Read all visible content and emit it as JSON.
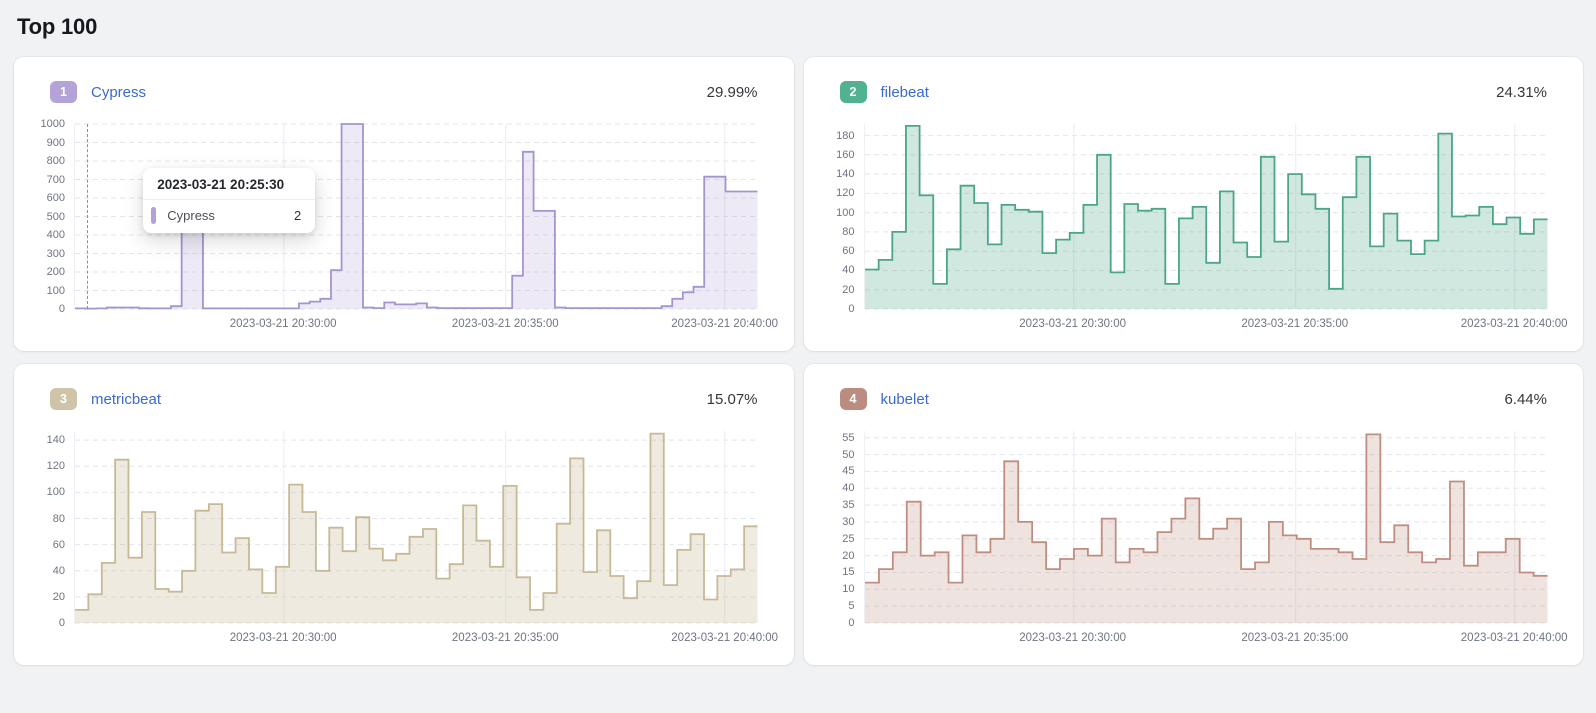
{
  "page": {
    "title": "Top 100"
  },
  "x_axis": {
    "labels": [
      "2023-03-21 20:30:00",
      "2023-03-21 20:35:00",
      "2023-03-21 20:40:00"
    ],
    "fractions": [
      0.306,
      0.631,
      0.952
    ]
  },
  "chart_data": [
    {
      "type": "step-area",
      "rank": "1",
      "name": "Cypress",
      "percent": "29.99%",
      "badge_color": "#b4a3d8",
      "line_color": "#a494cf",
      "fill_opacity": 0.2,
      "ylabel": "",
      "y_ticks": [
        0,
        100,
        200,
        300,
        400,
        500,
        600,
        700,
        800,
        900,
        1000
      ],
      "y_render_max": 1000,
      "x_tick_labels": [
        "2023-03-21 20:30:00",
        "2023-03-21 20:35:00",
        "2023-03-21 20:40:00"
      ],
      "values": [
        3,
        2,
        3,
        8,
        8,
        8,
        4,
        3,
        3,
        15,
        470,
        500,
        3,
        3,
        3,
        3,
        3,
        3,
        3,
        3,
        3,
        30,
        40,
        55,
        210,
        1000,
        1000,
        8,
        5,
        35,
        25,
        25,
        30,
        8,
        5,
        5,
        5,
        5,
        5,
        5,
        5,
        180,
        850,
        530,
        530,
        8,
        5,
        5,
        5,
        5,
        5,
        5,
        5,
        5,
        5,
        15,
        55,
        90,
        120,
        715,
        715,
        635,
        635,
        635
      ],
      "tooltip": {
        "title": "2023-03-21 20:25:30",
        "series": "Cypress",
        "value": "2",
        "cursor_frac": 0.018
      }
    },
    {
      "type": "step-area",
      "rank": "2",
      "name": "filebeat",
      "percent": "24.31%",
      "badge_color": "#51b190",
      "line_color": "#4aa687",
      "fill_opacity": 0.26,
      "ylabel": "",
      "y_ticks": [
        0,
        20,
        40,
        60,
        80,
        100,
        120,
        140,
        160,
        180
      ],
      "y_render_max": 192,
      "x_tick_labels": [
        "2023-03-21 20:30:00",
        "2023-03-21 20:35:00",
        "2023-03-21 20:40:00"
      ],
      "values": [
        41,
        51,
        80,
        190,
        118,
        26,
        62,
        128,
        110,
        67,
        108,
        103,
        101,
        58,
        72,
        79,
        108,
        160,
        38,
        109,
        102,
        104,
        26,
        94,
        106,
        48,
        122,
        69,
        54,
        158,
        70,
        140,
        119,
        104,
        21,
        116,
        158,
        65,
        99,
        71,
        57,
        71,
        182,
        96,
        97,
        106,
        88,
        95,
        78,
        93
      ]
    },
    {
      "type": "step-area",
      "rank": "3",
      "name": "metricbeat",
      "percent": "15.07%",
      "badge_color": "#cfc4a9",
      "line_color": "#c6b996",
      "fill_opacity": 0.3,
      "ylabel": "",
      "y_ticks": [
        0,
        20,
        40,
        60,
        80,
        100,
        120,
        140
      ],
      "y_render_max": 147,
      "x_tick_labels": [
        "2023-03-21 20:30:00",
        "2023-03-21 20:35:00",
        "2023-03-21 20:40:00"
      ],
      "values": [
        10,
        22,
        46,
        125,
        50,
        85,
        26,
        24,
        40,
        86,
        91,
        54,
        65,
        41,
        23,
        43,
        106,
        85,
        40,
        73,
        55,
        81,
        57,
        48,
        53,
        66,
        72,
        34,
        45,
        90,
        63,
        43,
        105,
        35,
        10,
        23,
        76,
        126,
        39,
        71,
        36,
        19,
        32,
        145,
        29,
        56,
        68,
        18,
        36,
        41,
        74
      ]
    },
    {
      "type": "step-area",
      "rank": "4",
      "name": "kubelet",
      "percent": "6.44%",
      "badge_color": "#bd8c80",
      "line_color": "#bf8e80",
      "fill_opacity": 0.25,
      "ylabel": "",
      "y_ticks": [
        0,
        5,
        10,
        15,
        20,
        25,
        30,
        35,
        40,
        45,
        50,
        55
      ],
      "y_render_max": 57,
      "x_tick_labels": [
        "2023-03-21 20:30:00",
        "2023-03-21 20:35:00",
        "2023-03-21 20:40:00"
      ],
      "values": [
        12,
        16,
        21,
        36,
        20,
        21,
        12,
        26,
        21,
        25,
        48,
        30,
        24,
        16,
        19,
        22,
        20,
        31,
        18,
        22,
        21,
        27,
        31,
        37,
        25,
        28,
        31,
        16,
        18,
        30,
        26,
        25,
        22,
        22,
        21,
        19,
        56,
        24,
        29,
        21,
        18,
        19,
        42,
        17,
        21,
        21,
        25,
        15,
        14
      ]
    }
  ]
}
